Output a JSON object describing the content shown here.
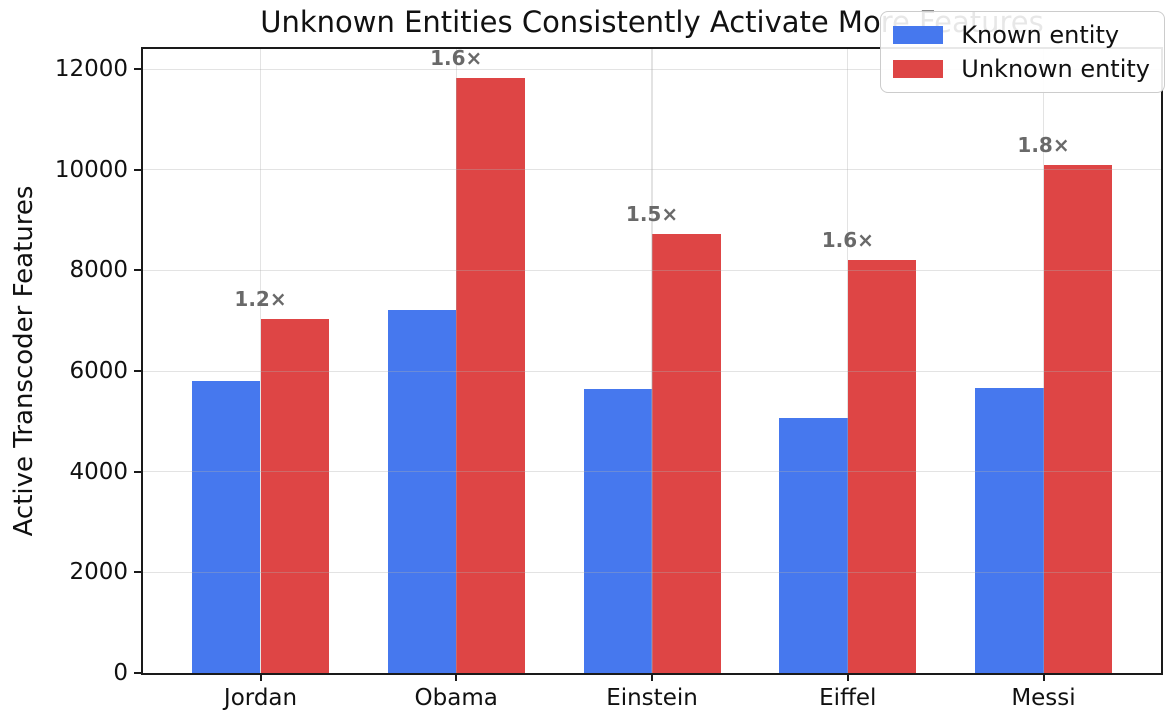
{
  "chart_data": {
    "type": "bar",
    "title": "Unknown Entities Consistently Activate More Features",
    "xlabel": "",
    "ylabel": "Active Transcoder Features",
    "categories": [
      "Jordan",
      "Obama",
      "Einstein",
      "Eiffel",
      "Messi"
    ],
    "series": [
      {
        "name": "Known entity",
        "color": "#4678ee",
        "values": [
          5800,
          7210,
          5650,
          5070,
          5660
        ]
      },
      {
        "name": "Unknown entity",
        "color": "#de4545",
        "values": [
          7030,
          11820,
          8720,
          8210,
          10090
        ]
      }
    ],
    "ratio_annotations": {
      "labels": [
        "1.2×",
        "1.6×",
        "1.5×",
        "1.6×",
        "1.8×"
      ],
      "color": "#696969"
    },
    "yticks": [
      0,
      2000,
      4000,
      6000,
      8000,
      10000,
      12000
    ],
    "ylim": [
      0,
      12400
    ],
    "grid": true,
    "legend_position": "upper right",
    "spine_color": "#1a1a1a"
  }
}
